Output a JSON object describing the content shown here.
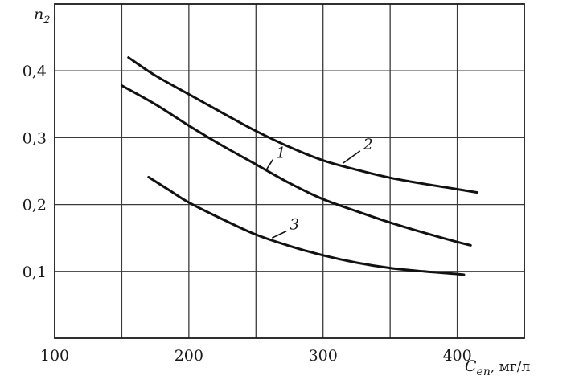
{
  "chart_data": {
    "type": "line",
    "xlabel": "C",
    "xlabel_sub": "en",
    "xlabel_unit": ", мг/л",
    "ylabel": "n",
    "ylabel_sub": "2",
    "xlim": [
      100,
      450
    ],
    "ylim": [
      0,
      0.5
    ],
    "x_ticks": [
      100,
      150,
      200,
      250,
      300,
      350,
      400,
      450
    ],
    "x_tick_labels": [
      "100",
      "",
      "200",
      "",
      "300",
      "",
      "400",
      ""
    ],
    "y_ticks": [
      0.1,
      0.2,
      0.3,
      0.4
    ],
    "y_tick_labels": [
      "0,1",
      "0,2",
      "0,3",
      "0,4"
    ],
    "grid": true,
    "series": [
      {
        "name": "1",
        "x": [
          150,
          175,
          200,
          225,
          250,
          275,
          300,
          325,
          350,
          375,
          400,
          410
        ],
        "y": [
          0.378,
          0.35,
          0.318,
          0.288,
          0.26,
          0.232,
          0.208,
          0.19,
          0.173,
          0.158,
          0.144,
          0.139
        ]
      },
      {
        "name": "2",
        "x": [
          155,
          175,
          200,
          225,
          250,
          275,
          300,
          325,
          350,
          375,
          400,
          415
        ],
        "y": [
          0.42,
          0.393,
          0.365,
          0.337,
          0.31,
          0.286,
          0.266,
          0.252,
          0.24,
          0.231,
          0.223,
          0.218
        ]
      },
      {
        "name": "3",
        "x": [
          170,
          185,
          200,
          225,
          250,
          275,
          300,
          325,
          350,
          375,
          400,
          405
        ],
        "y": [
          0.241,
          0.222,
          0.203,
          0.178,
          0.155,
          0.138,
          0.124,
          0.113,
          0.105,
          0.1,
          0.096,
          0.095
        ]
      }
    ],
    "curve_labels": [
      {
        "text": "1",
        "series": 0,
        "x": 263,
        "y": 0.27
      },
      {
        "text": "2",
        "series": 1,
        "x": 320,
        "y": 0.29
      },
      {
        "text": "3",
        "series": 2,
        "x": 270,
        "y": 0.16
      }
    ]
  }
}
